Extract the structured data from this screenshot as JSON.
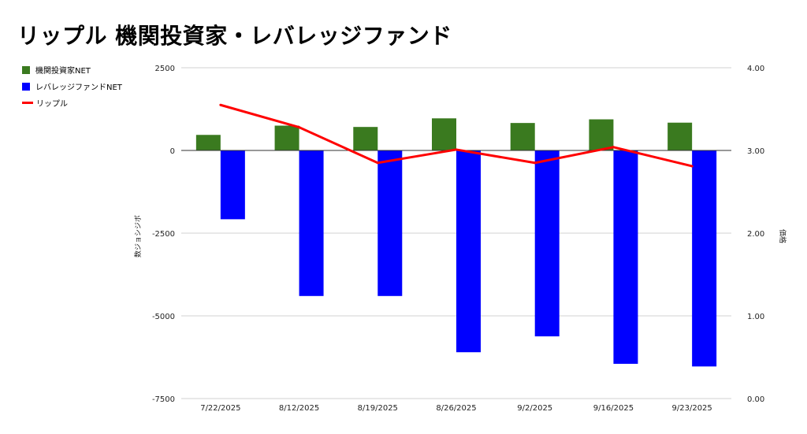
{
  "colors": {
    "institutional": "#3a7a1f",
    "leveraged": "#0000ff",
    "ripple": "#ff0000",
    "grid": "#d0d0d0"
  },
  "chart_data": {
    "type": "bar",
    "title": "リップル 機関投資家・レバレッジファンド",
    "ylabel_left": "数ジョシジボ",
    "ylabel_right": "価格",
    "categories": [
      "7/22/2025",
      "8/12/2025",
      "8/19/2025",
      "8/26/2025",
      "9/2/2025",
      "9/16/2025",
      "9/23/2025"
    ],
    "ylim_left": [
      -7500,
      2500
    ],
    "ylim_right": [
      0.0,
      4.0
    ],
    "yticks_left": [
      "2500",
      "0",
      "-2500",
      "-5000",
      "-7500"
    ],
    "yticks_right": [
      "4.00",
      "3.00",
      "2.00",
      "1.00",
      "0.00"
    ],
    "legend_position": "top-left",
    "series": [
      {
        "name": "機関投資家NET",
        "type": "bar",
        "axis": "left",
        "values": [
          470,
          750,
          710,
          970,
          830,
          940,
          840
        ]
      },
      {
        "name": "レバレッジファンドNET",
        "type": "bar",
        "axis": "left",
        "values": [
          -2080,
          -4400,
          -4400,
          -6100,
          -5620,
          -6450,
          -6530
        ]
      },
      {
        "name": "リップル",
        "type": "line",
        "axis": "right",
        "values": [
          3.55,
          3.28,
          2.85,
          3.01,
          2.85,
          3.04,
          2.81
        ]
      }
    ]
  }
}
